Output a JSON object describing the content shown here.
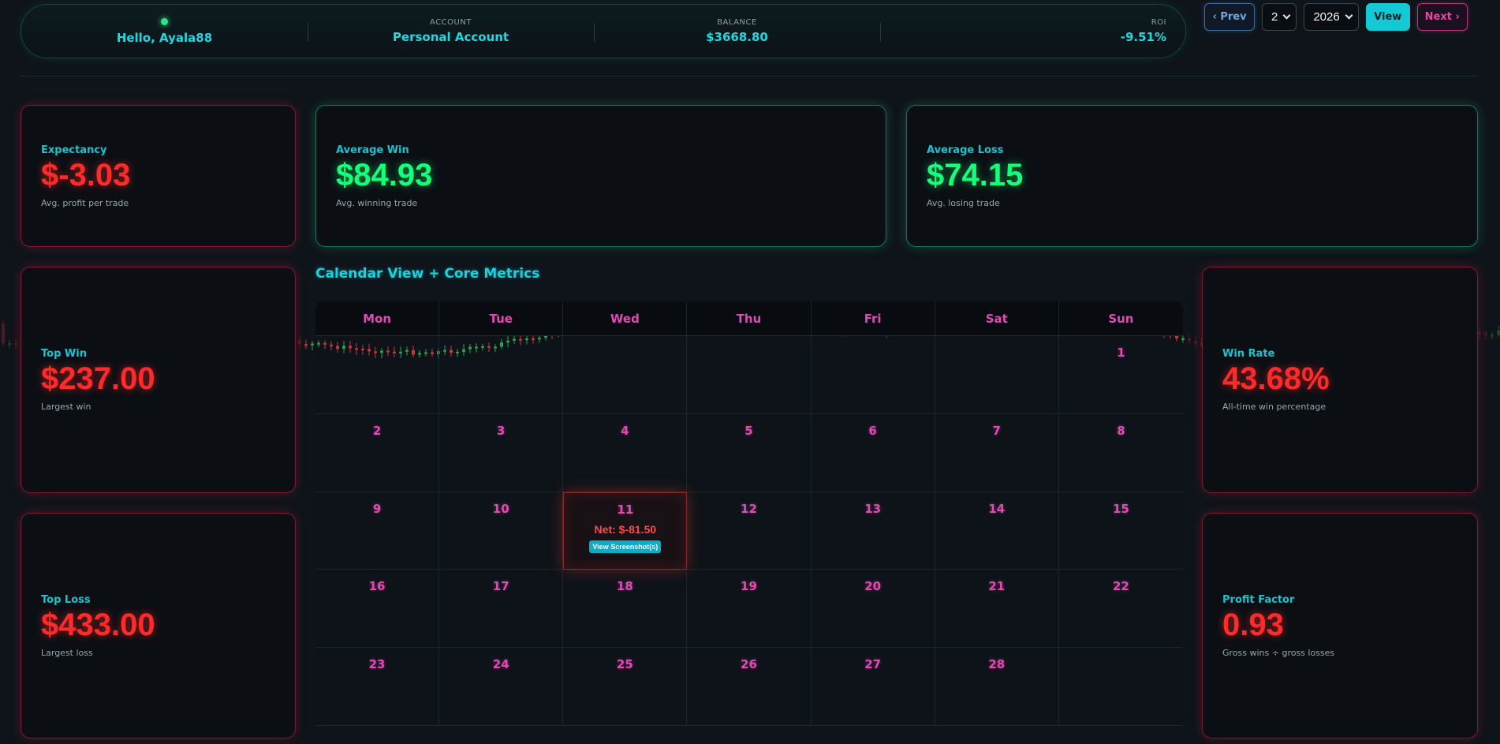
{
  "header": {
    "greeting": "Hello, Ayala88",
    "account_label": "ACCOUNT",
    "account_value": "Personal Account",
    "balance_label": "BALANCE",
    "balance_value": "$3668.80",
    "roi_label": "ROI",
    "roi_value": "-9.51%"
  },
  "controls": {
    "prev_label": "‹ Prev",
    "month_value": "2",
    "year_value": "2026",
    "view_label": "View",
    "next_label": "Next ›"
  },
  "cards": {
    "expectancy": {
      "title": "Expectancy",
      "value": "$-3.03",
      "sub": "Avg. profit per trade"
    },
    "avg_win": {
      "title": "Average Win",
      "value": "$84.93",
      "sub": "Avg. winning trade"
    },
    "avg_loss": {
      "title": "Average Loss",
      "value": "$74.15",
      "sub": "Avg. losing trade"
    },
    "top_win": {
      "title": "Top Win",
      "value": "$237.00",
      "sub": "Largest win"
    },
    "top_loss": {
      "title": "Top Loss",
      "value": "$433.00",
      "sub": "Largest loss"
    },
    "win_rate": {
      "title": "Win Rate",
      "value": "43.68%",
      "sub": "All-time win percentage"
    },
    "profit_factor": {
      "title": "Profit Factor",
      "value": "0.93",
      "sub": "Gross wins ÷ gross losses"
    }
  },
  "calendar": {
    "title": "Calendar View + Core Metrics",
    "weekdays": [
      "Mon",
      "Tue",
      "Wed",
      "Thu",
      "Fri",
      "Sat",
      "Sun"
    ],
    "days": [
      "",
      "",
      "",
      "",
      "",
      "",
      "1",
      "2",
      "3",
      "4",
      "5",
      "6",
      "7",
      "8",
      "9",
      "10",
      "11",
      "12",
      "13",
      "14",
      "15",
      "16",
      "17",
      "18",
      "19",
      "20",
      "21",
      "22",
      "23",
      "24",
      "25",
      "26",
      "27",
      "28",
      ""
    ],
    "trade_day": {
      "day": "11",
      "net": "Net: $-81.50",
      "button": "View Screenshot(s)"
    }
  },
  "colors": {
    "accent_cyan": "#18d3df",
    "loss_red": "#ff2b2b",
    "win_green": "#16ff7a",
    "day_pink": "#e04ab4"
  }
}
